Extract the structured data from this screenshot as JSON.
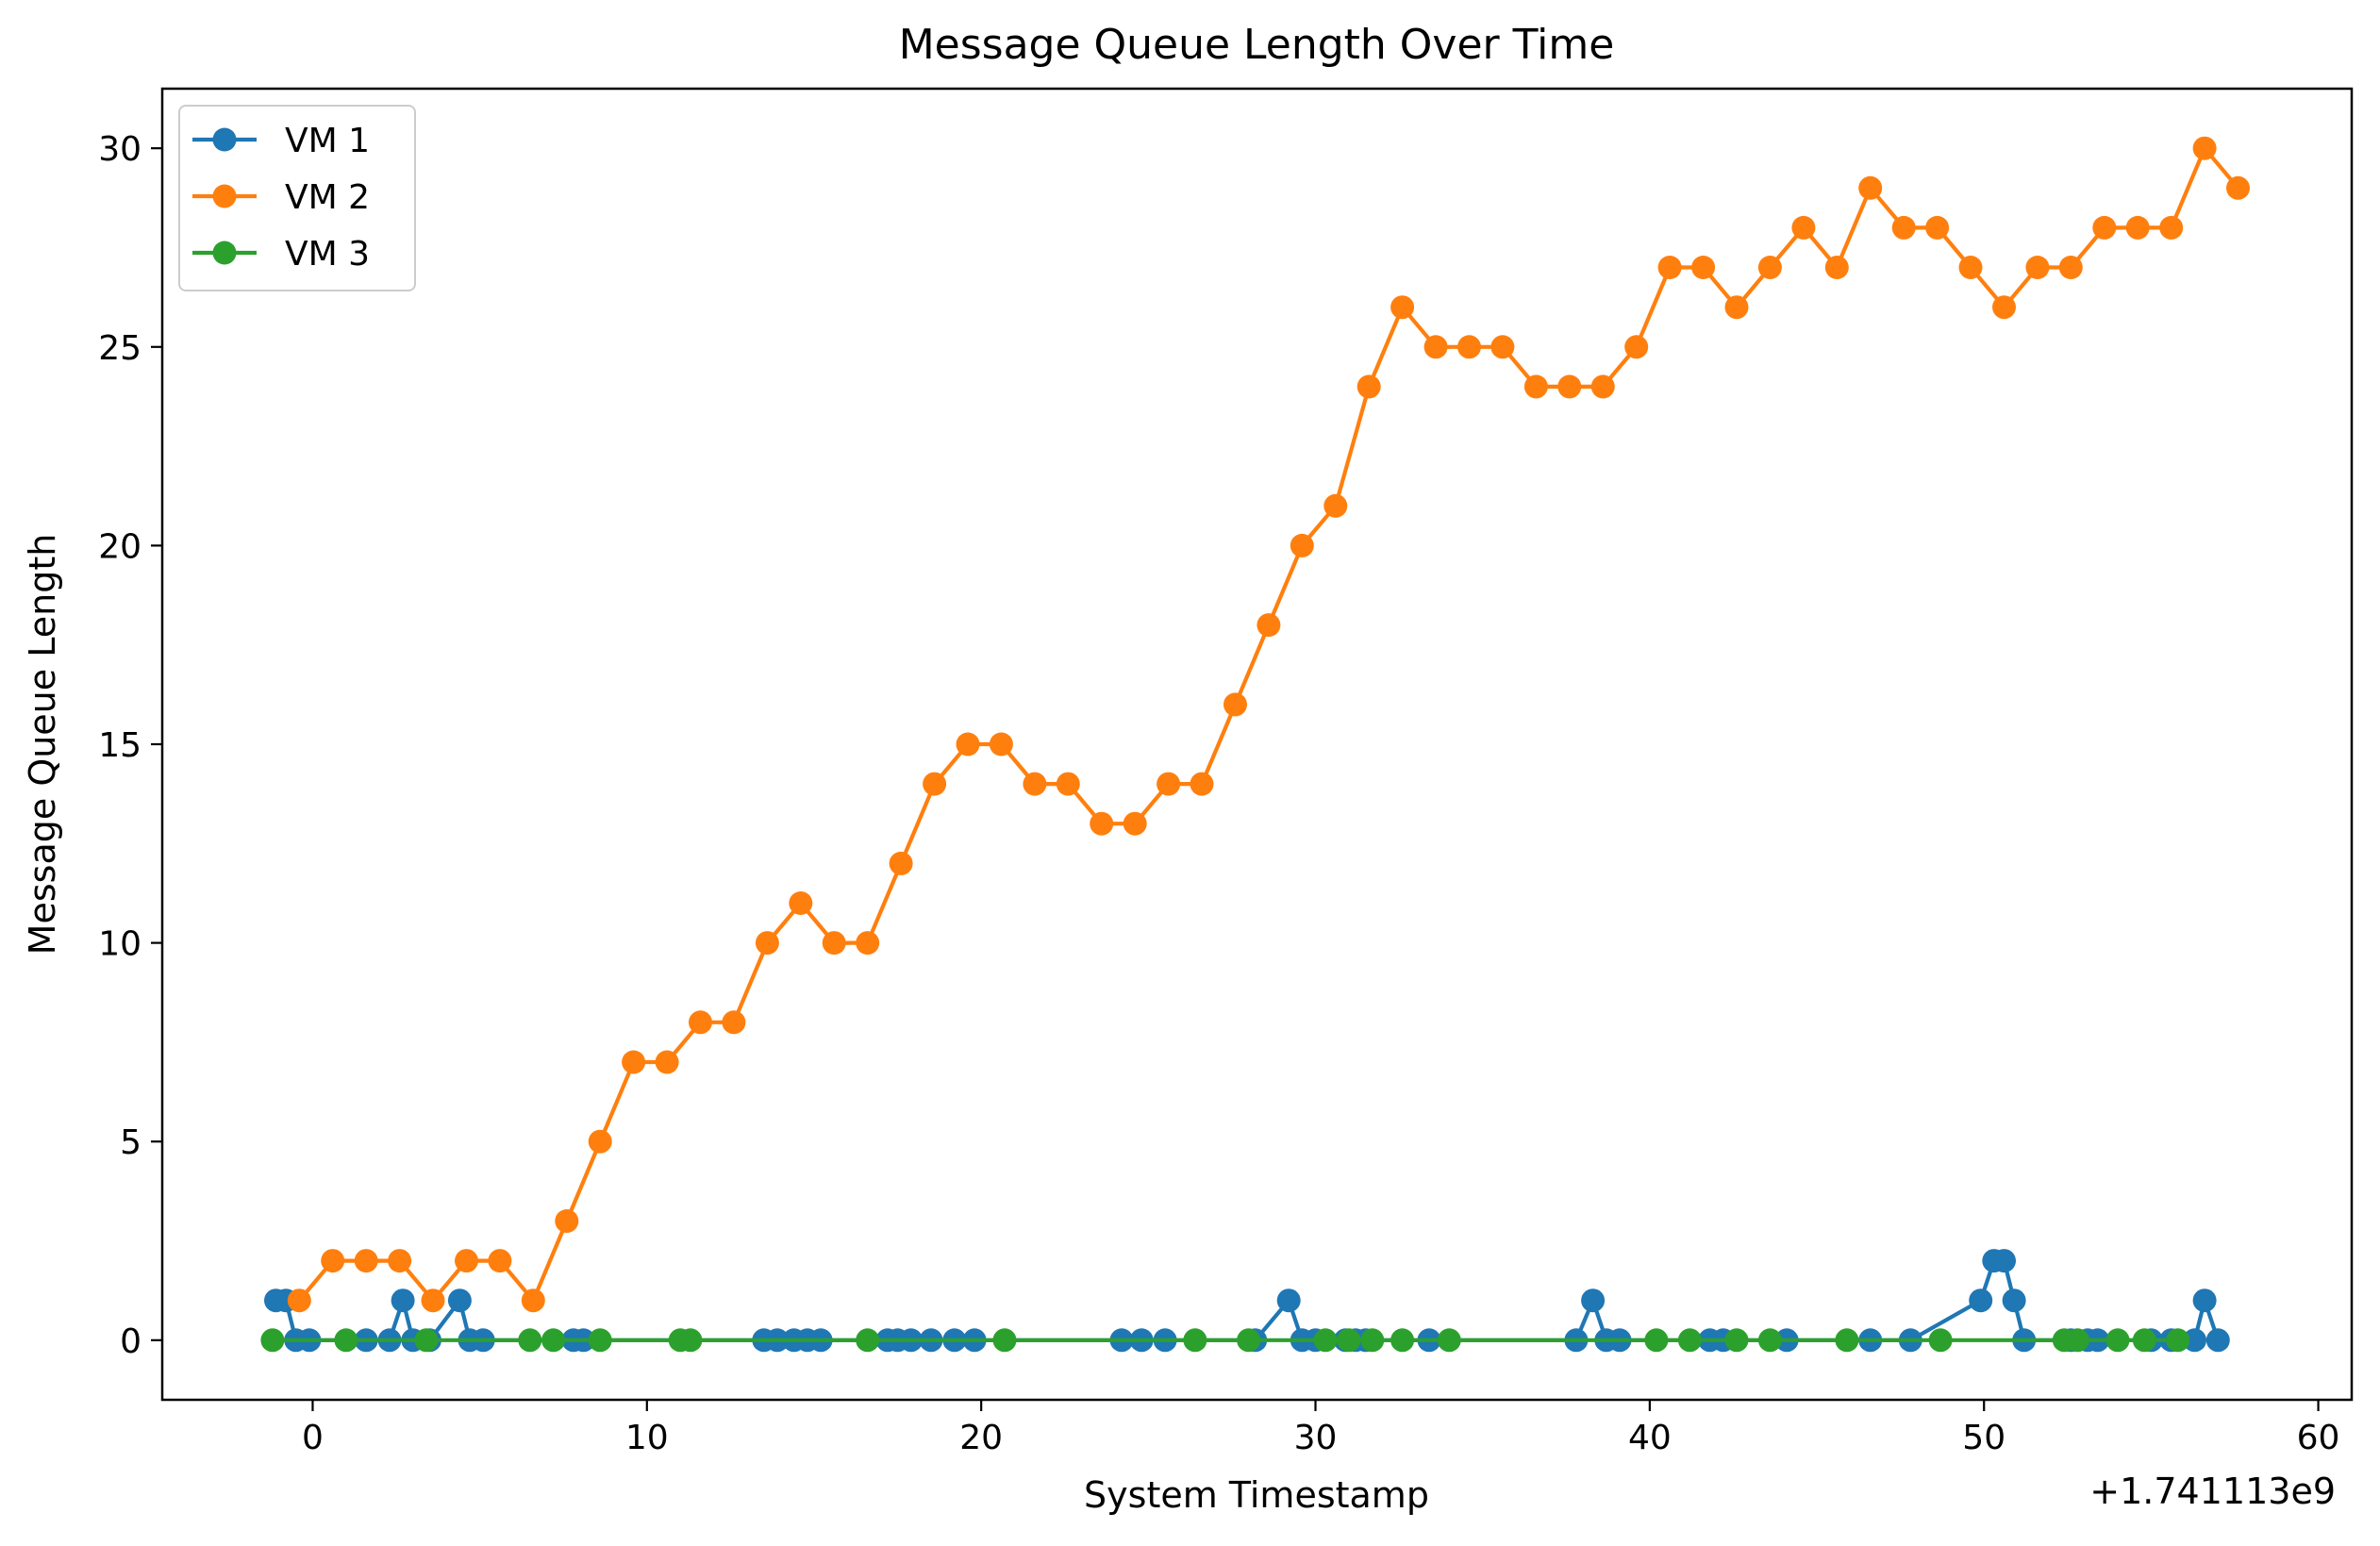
{
  "chart_data": {
    "type": "line",
    "title": "Message Queue Length Over Time",
    "xlabel": "System Timestamp",
    "ylabel": "Message Queue Length",
    "x_offset_label": "+1.741113e9",
    "xlim": [
      -4.5,
      61
    ],
    "ylim": [
      -1.5,
      31.5
    ],
    "xticks": [
      0,
      10,
      20,
      30,
      40,
      50,
      60
    ],
    "yticks": [
      0,
      5,
      10,
      15,
      20,
      25,
      30
    ],
    "grid": false,
    "legend": "top-left",
    "series": [
      {
        "name": "VM 1",
        "color": "#1f77b4",
        "x": [
          -1.1,
          -0.8,
          -0.5,
          -0.1,
          1.6,
          2.3,
          2.7,
          3.0,
          3.5,
          4.4,
          4.7,
          5.1,
          7.8,
          8.1,
          13.5,
          13.9,
          14.4,
          14.8,
          15.2,
          17.2,
          17.5,
          17.9,
          18.5,
          19.2,
          19.8,
          24.2,
          24.8,
          25.5,
          28.2,
          29.2,
          29.6,
          30.0,
          30.9,
          31.2,
          31.5,
          33.4,
          37.8,
          38.3,
          38.7,
          39.1,
          41.8,
          42.2,
          44.1,
          46.6,
          47.8,
          49.9,
          50.3,
          50.6,
          50.9,
          51.2,
          52.6,
          53.1,
          53.4,
          55.0,
          55.6,
          56.3,
          56.6,
          57.0
        ],
        "y": [
          1,
          1,
          0,
          0,
          0,
          0,
          1,
          0,
          0,
          1,
          0,
          0,
          0,
          0,
          0,
          0,
          0,
          0,
          0,
          0,
          0,
          0,
          0,
          0,
          0,
          0,
          0,
          0,
          0,
          1,
          0,
          0,
          0,
          0,
          0,
          0,
          0,
          1,
          0,
          0,
          0,
          0,
          0,
          0,
          0,
          1,
          2,
          2,
          1,
          0,
          0,
          0,
          0,
          0,
          0,
          0,
          1,
          0
        ]
      },
      {
        "name": "VM 2",
        "color": "#ff7f0e",
        "x": [
          -0.4,
          0.6,
          1.6,
          2.6,
          3.6,
          4.6,
          5.6,
          6.6,
          7.6,
          8.6,
          9.6,
          10.6,
          11.6,
          12.6,
          13.6,
          14.6,
          15.6,
          16.6,
          17.6,
          18.6,
          19.6,
          20.6,
          21.6,
          22.6,
          23.6,
          24.6,
          25.6,
          26.6,
          27.6,
          28.6,
          29.6,
          30.6,
          31.6,
          32.6,
          33.6,
          34.6,
          35.6,
          36.6,
          37.6,
          38.6,
          39.6,
          40.6,
          41.6,
          42.6,
          43.6,
          44.6,
          45.6,
          46.6,
          47.6,
          48.6,
          49.6,
          50.6,
          51.6,
          52.6,
          53.6,
          54.6,
          55.6,
          56.6,
          57.6
        ],
        "y": [
          1,
          2,
          2,
          2,
          1,
          2,
          2,
          1,
          3,
          5,
          7,
          7,
          8,
          8,
          10,
          11,
          10,
          10,
          12,
          14,
          15,
          15,
          14,
          14,
          13,
          13,
          14,
          14,
          16,
          18,
          20,
          21,
          24,
          26,
          25,
          25,
          25,
          24,
          24,
          24,
          25,
          27,
          27,
          26,
          27,
          28,
          27,
          29,
          28,
          28,
          27,
          26,
          27,
          27,
          28,
          28,
          28,
          30,
          29
        ]
      },
      {
        "name": "VM 3",
        "color": "#2ca02c",
        "x": [
          -1.2,
          1.0,
          3.4,
          6.5,
          7.2,
          8.6,
          11.0,
          11.3,
          16.6,
          20.7,
          26.4,
          28.0,
          30.3,
          31.0,
          31.7,
          32.6,
          34.0,
          40.2,
          41.2,
          42.6,
          43.6,
          45.9,
          48.7,
          52.4,
          52.8,
          54.0,
          54.8,
          55.8
        ],
        "y": [
          0,
          0,
          0,
          0,
          0,
          0,
          0,
          0,
          0,
          0,
          0,
          0,
          0,
          0,
          0,
          0,
          0,
          0,
          0,
          0,
          0,
          0,
          0,
          0,
          0,
          0,
          0,
          0
        ]
      }
    ]
  }
}
